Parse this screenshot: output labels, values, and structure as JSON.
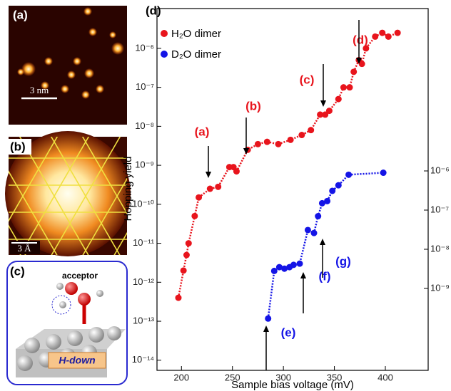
{
  "panels": {
    "a": {
      "label": "(a)",
      "scale": "3 nm"
    },
    "b": {
      "label": "(b)",
      "scale": "3 Å"
    },
    "c": {
      "label": "(c)",
      "acceptor": "acceptor",
      "structure": "H-down"
    }
  },
  "chart_data": {
    "type": "scatter",
    "label": "(d)",
    "x_label": "Sample bias voltage (mV)",
    "y_label": "Hopping yield",
    "xlim": [
      176,
      442
    ],
    "xticks": [
      200,
      250,
      300,
      350,
      400
    ],
    "ylog": true,
    "ylim": [
      5.5e-15,
      1.05e-05
    ],
    "yticks": [
      {
        "value": 1e-14,
        "label": "10⁻¹⁴"
      },
      {
        "value": 1e-13,
        "label": "10⁻¹³"
      },
      {
        "value": 1e-12,
        "label": "10⁻¹²"
      },
      {
        "value": 1e-11,
        "label": "10⁻¹¹"
      },
      {
        "value": 1e-10,
        "label": "10⁻¹⁰"
      },
      {
        "value": 1e-09,
        "label": "10⁻⁹"
      },
      {
        "value": 1e-08,
        "label": "10⁻⁸"
      },
      {
        "value": 1e-07,
        "label": "10⁻⁷"
      },
      {
        "value": 1e-06,
        "label": "10⁻⁶"
      }
    ],
    "y2lim": [
      8.1e-12,
      0.014
    ],
    "y2ticks": [
      {
        "value": 1e-09,
        "label": "10⁻⁹"
      },
      {
        "value": 1e-08,
        "label": "10⁻⁸"
      },
      {
        "value": 1e-07,
        "label": "10⁻⁷"
      },
      {
        "value": 1e-06,
        "label": "10⁻⁶"
      }
    ],
    "series": [
      {
        "name": "H₂O dimer",
        "color": "#e8141c",
        "x": [
          197,
          202,
          205,
          207,
          213,
          217,
          228,
          236,
          247,
          251,
          254,
          265,
          275,
          284,
          295,
          307,
          318,
          327,
          336,
          341,
          345,
          354,
          359,
          365,
          369,
          374,
          377,
          381,
          390,
          397,
          403,
          412
        ],
        "values": [
          4e-13,
          2e-12,
          5e-12,
          1e-11,
          5e-11,
          1.5e-10,
          2.5e-10,
          2.8e-10,
          9e-10,
          9e-10,
          7e-10,
          2.5e-09,
          3.5e-09,
          4e-09,
          3.5e-09,
          4.5e-09,
          6e-09,
          8e-09,
          2e-08,
          2e-08,
          2.5e-08,
          5e-08,
          1e-07,
          1e-07,
          2.5e-07,
          5e-07,
          4e-07,
          1e-06,
          2e-06,
          2.5e-06,
          2e-06,
          2.5e-06
        ]
      },
      {
        "name": "D₂O dimer",
        "color": "#1414e6",
        "axis": "y2",
        "x": [
          285,
          291,
          296,
          301,
          306,
          310,
          316,
          324,
          330,
          334,
          338,
          343,
          348,
          354,
          364,
          398
        ],
        "values": [
          1.7e-10,
          2.8e-09,
          3.5e-09,
          3.2e-09,
          3.5e-09,
          4e-09,
          4.3e-09,
          3.1e-08,
          2.6e-08,
          7e-08,
          1.5e-07,
          1.7e-07,
          3.1e-07,
          4.3e-07,
          8e-07,
          9e-07
        ]
      }
    ],
    "annotations": [
      {
        "text": "(a)",
        "color": "#e8141c"
      },
      {
        "text": "(b)",
        "color": "#e8141c"
      },
      {
        "text": "(c)",
        "color": "#e8141c"
      },
      {
        "text": "(d)",
        "color": "#e8141c"
      },
      {
        "text": "(e)",
        "color": "#1414e6"
      },
      {
        "text": "(f)",
        "color": "#1414e6"
      },
      {
        "text": "(g)",
        "color": "#1414e6"
      }
    ]
  }
}
